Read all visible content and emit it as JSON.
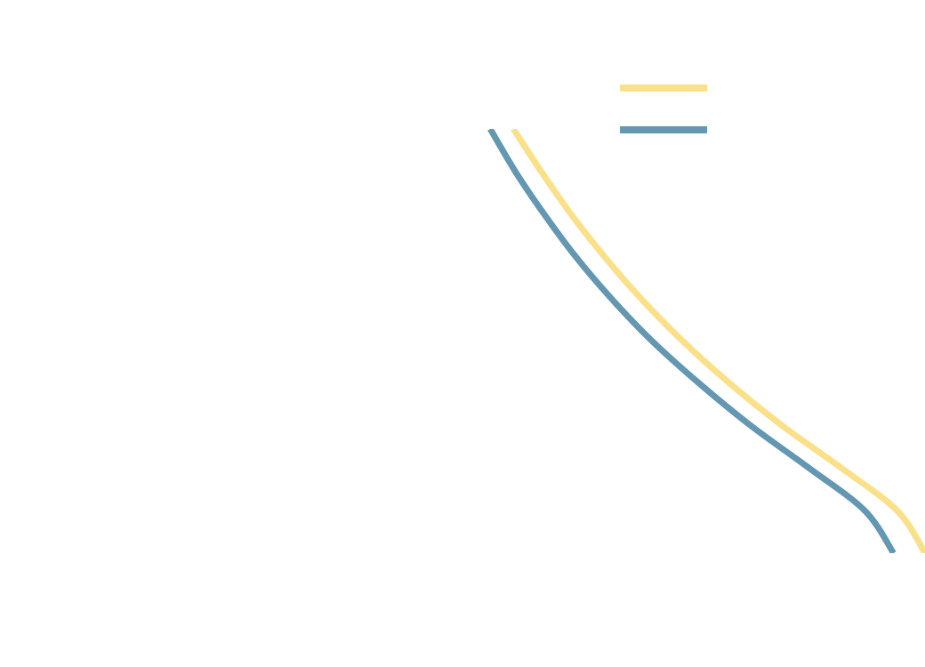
{
  "chart_data": {
    "type": "line",
    "title": "",
    "xlabel": "",
    "ylabel": "",
    "grid": false,
    "legend": {
      "position": "top-right",
      "entries": [
        {
          "series": 0,
          "label": ""
        },
        {
          "series": 1,
          "label": ""
        }
      ]
    },
    "xlim": [
      0,
      1
    ],
    "ylim": [
      0,
      1
    ],
    "series": [
      {
        "color": "#fae088",
        "values": [
          [
            0.555,
            1.0
          ],
          [
            0.585,
            0.9
          ],
          [
            0.617,
            0.8
          ],
          [
            0.653,
            0.7
          ],
          [
            0.693,
            0.6
          ],
          [
            0.738,
            0.5
          ],
          [
            0.789,
            0.4
          ],
          [
            0.846,
            0.3
          ],
          [
            0.91,
            0.2
          ],
          [
            0.97,
            0.1
          ],
          [
            1.0,
            0.0
          ]
        ]
      },
      {
        "color": "#6497b1",
        "values": [
          [
            0.53,
            1.0
          ],
          [
            0.557,
            0.9
          ],
          [
            0.588,
            0.8
          ],
          [
            0.622,
            0.7
          ],
          [
            0.661,
            0.6
          ],
          [
            0.705,
            0.5
          ],
          [
            0.756,
            0.4
          ],
          [
            0.812,
            0.3
          ],
          [
            0.875,
            0.2
          ],
          [
            0.935,
            0.1
          ],
          [
            0.966,
            0.0
          ]
        ]
      }
    ]
  }
}
